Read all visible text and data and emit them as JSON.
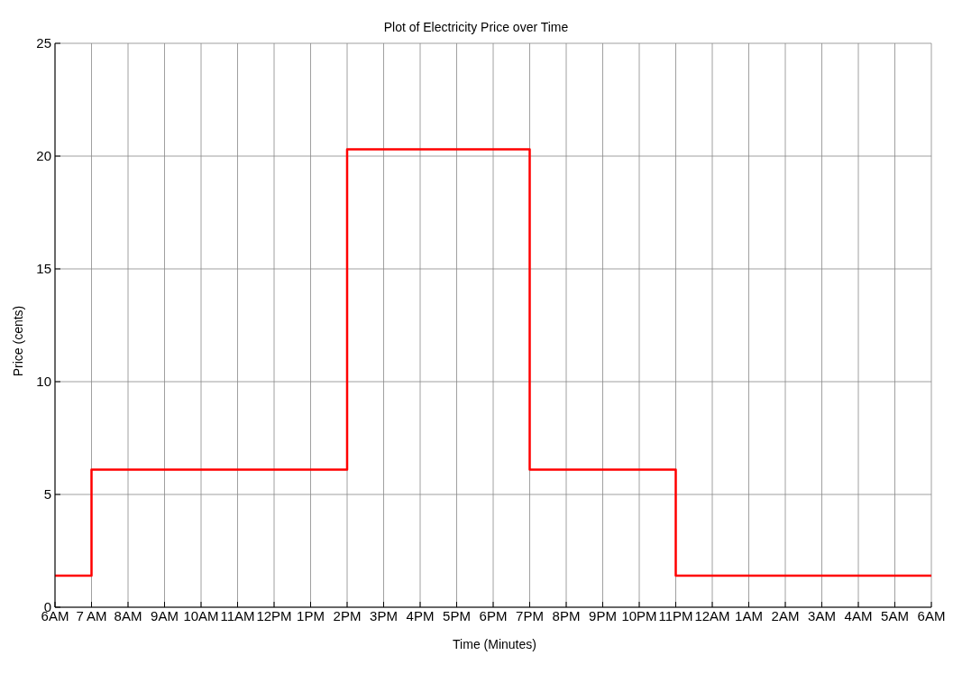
{
  "chart_data": {
    "type": "step",
    "title": "Plot of Electricity Price over Time",
    "xlabel": "Time (Minutes)",
    "ylabel": "Price (cents)",
    "categories": [
      "6AM",
      "7 AM",
      "8AM",
      "9AM",
      "10AM",
      "11AM",
      "12PM",
      "1PM",
      "2PM",
      "3PM",
      "4PM",
      "5PM",
      "6PM",
      "7PM",
      "8PM",
      "9PM",
      "10PM",
      "11PM",
      "12AM",
      "1AM",
      "2AM",
      "3AM",
      "4AM",
      "5AM",
      "6AM"
    ],
    "series": [
      {
        "color": "#ff0000",
        "values": [
          1.4,
          6.1,
          6.1,
          6.1,
          6.1,
          6.1,
          6.1,
          6.1,
          20.3,
          20.3,
          20.3,
          20.3,
          20.3,
          6.1,
          6.1,
          6.1,
          6.1,
          1.4,
          1.4,
          1.4,
          1.4,
          1.4,
          1.4,
          1.4,
          1.4
        ]
      }
    ],
    "ylim": [
      0,
      25
    ],
    "yticks": [
      0,
      5,
      10,
      15,
      20,
      25
    ],
    "grid": true,
    "marker": "none",
    "line_style": "solid"
  }
}
